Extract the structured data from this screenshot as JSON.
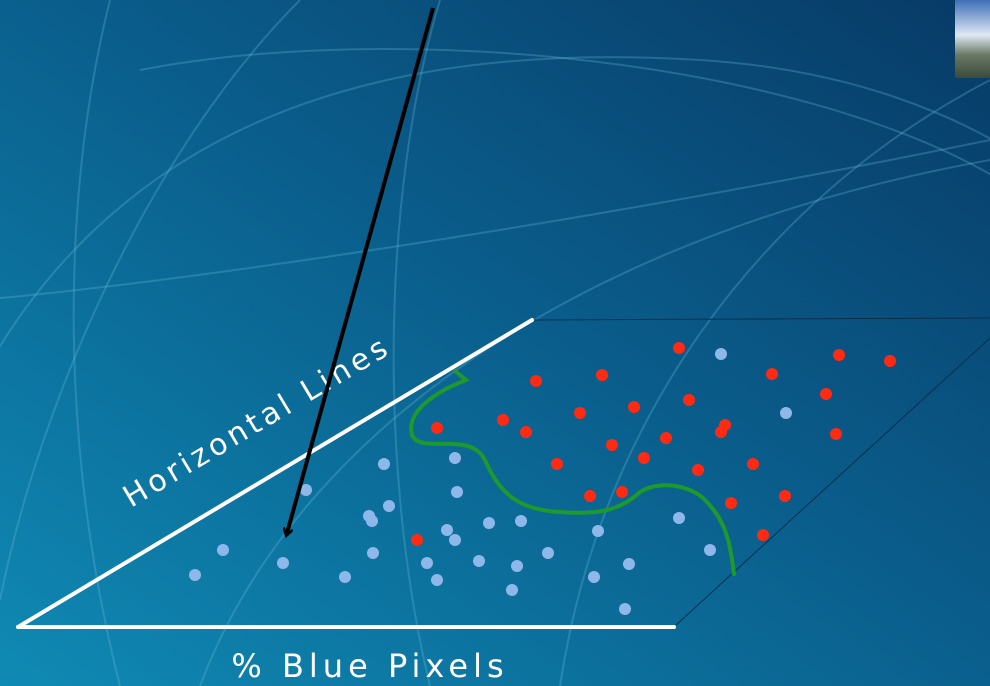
{
  "axes": {
    "x_label": "% Blue Pixels",
    "y_label": "Horizontal Lines"
  }
}
